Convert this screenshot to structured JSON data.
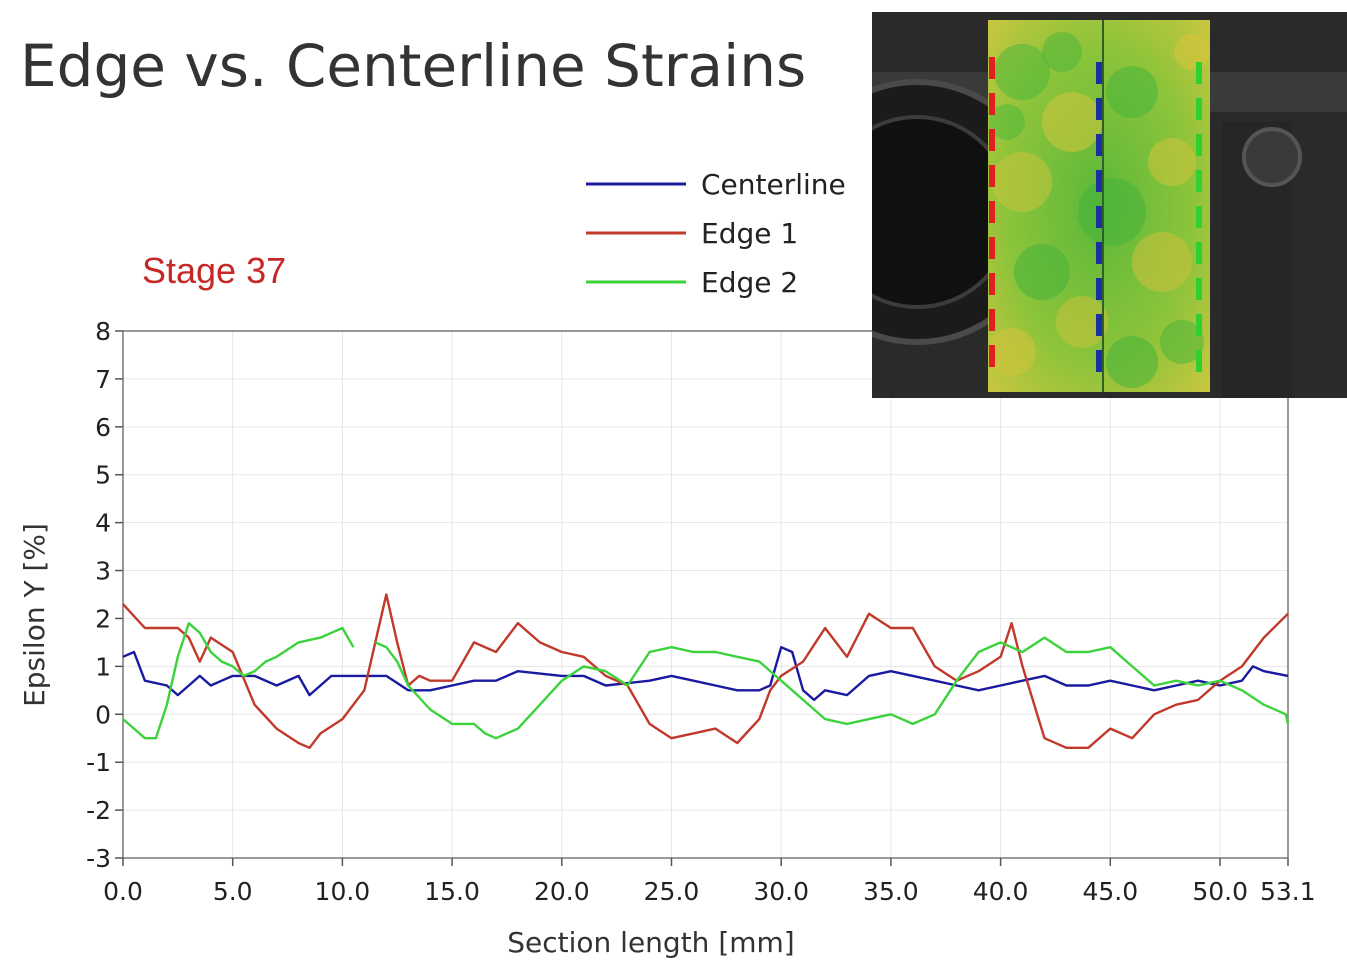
{
  "title": "Edge vs. Centerline Strains",
  "stage_label": "Stage 37",
  "chart_data": {
    "type": "line",
    "xlabel": "Section length [mm]",
    "ylabel": "Epsilon Y [%]",
    "xlim": [
      0,
      53.1
    ],
    "ylim": [
      -3,
      8
    ],
    "xticks": [
      "0.0",
      "5.0",
      "10.0",
      "15.0",
      "20.0",
      "25.0",
      "30.0",
      "35.0",
      "40.0",
      "45.0",
      "50.0",
      "53.1"
    ],
    "yticks": [
      "8",
      "7",
      "6",
      "5",
      "4",
      "3",
      "2",
      "1",
      "0",
      "-1",
      "-2",
      "-3"
    ],
    "grid": true,
    "legend_position": "top-right",
    "series": [
      {
        "name": "Centerline",
        "color": "#1a1aa0",
        "x": [
          0,
          0.5,
          1,
          2,
          2.5,
          3.5,
          4,
          4.5,
          5,
          6,
          7,
          8,
          8.5,
          9.5,
          10.5,
          12,
          13,
          14,
          15,
          16,
          17,
          18,
          20,
          21,
          22,
          24,
          25,
          26,
          27,
          28,
          29,
          29.5,
          30,
          30.5,
          31,
          31.5,
          32,
          33,
          34,
          35,
          36,
          37,
          38,
          39,
          40,
          41,
          42,
          43,
          44,
          45,
          46,
          47,
          48,
          49,
          50,
          51,
          51.5,
          52,
          53.1
        ],
        "y": [
          1.2,
          1.3,
          0.7,
          0.6,
          0.4,
          0.8,
          0.6,
          0.7,
          0.8,
          0.8,
          0.6,
          0.8,
          0.4,
          0.8,
          0.8,
          0.8,
          0.5,
          0.5,
          0.6,
          0.7,
          0.7,
          0.9,
          0.8,
          0.8,
          0.6,
          0.7,
          0.8,
          0.7,
          0.6,
          0.5,
          0.5,
          0.6,
          1.4,
          1.3,
          0.5,
          0.3,
          0.5,
          0.4,
          0.8,
          0.9,
          0.8,
          0.7,
          0.6,
          0.5,
          0.6,
          0.7,
          0.8,
          0.6,
          0.6,
          0.7,
          0.6,
          0.5,
          0.6,
          0.7,
          0.6,
          0.7,
          1.0,
          0.9,
          0.8
        ]
      },
      {
        "name": "Edge 1",
        "color": "#c0392b",
        "x": [
          0,
          1,
          2,
          2.5,
          3,
          3.5,
          4,
          5,
          6,
          7,
          8,
          8.5,
          9,
          10,
          11,
          11.5,
          12,
          12.5,
          13,
          13.5,
          14,
          15,
          16,
          17,
          18,
          19,
          20,
          21,
          22,
          23,
          24,
          25,
          26,
          27,
          28,
          29,
          29.5,
          30,
          31,
          32,
          33,
          34,
          35,
          36,
          37,
          38,
          39,
          40,
          40.5,
          41,
          42,
          43,
          44,
          45,
          46,
          47,
          48,
          49,
          50,
          51,
          52,
          53.1
        ],
        "y": [
          2.3,
          1.8,
          1.8,
          1.8,
          1.6,
          1.1,
          1.6,
          1.3,
          0.2,
          -0.3,
          -0.6,
          -0.7,
          -0.4,
          -0.1,
          0.5,
          1.5,
          2.5,
          1.5,
          0.6,
          0.8,
          0.7,
          0.7,
          1.5,
          1.3,
          1.9,
          1.5,
          1.3,
          1.2,
          0.8,
          0.6,
          -0.2,
          -0.5,
          -0.4,
          -0.3,
          -0.6,
          -0.1,
          0.5,
          0.8,
          1.1,
          1.8,
          1.2,
          2.1,
          1.8,
          1.8,
          1.0,
          0.7,
          0.9,
          1.2,
          1.9,
          1.0,
          -0.5,
          -0.7,
          -0.7,
          -0.3,
          -0.5,
          0.0,
          0.2,
          0.3,
          0.7,
          1.0,
          1.6,
          2.1
        ]
      },
      {
        "name": "Edge 2",
        "color": "#3cd23c",
        "x": [
          0,
          0.5,
          1,
          1.5,
          2,
          2.5,
          3,
          3.5,
          4,
          4.5,
          5,
          5.5,
          6,
          6.5,
          7,
          8,
          9,
          9.5,
          10,
          10.5,
          11,
          11.5,
          12,
          12.5,
          13,
          14,
          15,
          16,
          16.5,
          17,
          17.5,
          18,
          19,
          20,
          21,
          22,
          23,
          24,
          25,
          26,
          27,
          28,
          29,
          30,
          31,
          32,
          33,
          34,
          35,
          36,
          37,
          38,
          39,
          40,
          41,
          42,
          43,
          44,
          45,
          46,
          47,
          48,
          49,
          50,
          51,
          52,
          53,
          53.1
        ],
        "y": [
          -0.1,
          -0.3,
          -0.5,
          -0.5,
          0.2,
          1.2,
          1.9,
          1.7,
          1.3,
          1.1,
          1.0,
          0.8,
          0.9,
          1.1,
          1.2,
          1.5,
          1.6,
          1.7,
          1.8,
          1.4,
          null,
          1.5,
          1.4,
          1.1,
          0.6,
          0.1,
          -0.2,
          -0.2,
          -0.4,
          -0.5,
          -0.4,
          -0.3,
          0.2,
          0.7,
          1.0,
          0.9,
          0.6,
          1.3,
          1.4,
          1.3,
          1.3,
          1.2,
          1.1,
          0.7,
          0.3,
          -0.1,
          -0.2,
          -0.1,
          0.0,
          -0.2,
          0.0,
          0.7,
          1.3,
          1.5,
          1.3,
          1.6,
          1.3,
          1.3,
          1.4,
          1.0,
          0.6,
          0.7,
          0.6,
          0.7,
          0.5,
          0.2,
          0.0,
          -0.2
        ]
      }
    ]
  },
  "photo": {
    "background_color": "#2b2b2b",
    "specimen_color": "#7fc13a",
    "line_colors": [
      "#e02020",
      "#1a2fa0",
      "#30d030"
    ]
  }
}
